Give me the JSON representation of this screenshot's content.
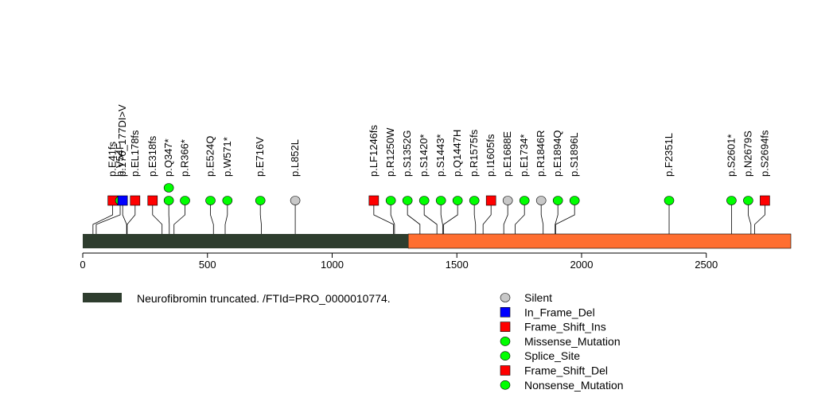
{
  "chart_data": {
    "type": "lollipop",
    "xlim": [
      0,
      2839
    ],
    "axis_ticks": [
      0,
      500,
      1000,
      1500,
      2000,
      2500
    ],
    "domain": {
      "label": "Neurofibromin truncated. /FTId=PRO_0000010774.",
      "start": 0,
      "end": 1305,
      "color": "#2e3d2e"
    },
    "backbone": {
      "start": 1305,
      "end": 2839,
      "color": "#ff6e30"
    },
    "mutations": [
      {
        "label": "p.E41fs",
        "pos": 41,
        "ypos": 120,
        "type": "Frame_Shift_Ins"
      },
      {
        "label": "p.V54F",
        "pos": 54,
        "ypos": 150,
        "type": "Missense_Mutation"
      },
      {
        "label": "p.176_177DI>V",
        "pos": 176,
        "ypos": 160,
        "type": "In_Frame_Del"
      },
      {
        "label": "p.EL178fs",
        "pos": 178,
        "ypos": 210,
        "type": "Frame_Shift_Del"
      },
      {
        "label": "p.E318fs",
        "pos": 318,
        "ypos": 280,
        "type": "Frame_Shift_Del"
      },
      {
        "label": "p.Q347*",
        "pos": 347,
        "ypos": 345,
        "type": "Nonsense_Mutation",
        "count": 2
      },
      {
        "label": "p.R366*",
        "pos": 366,
        "ypos": 410,
        "type": "Nonsense_Mutation"
      },
      {
        "label": "p.E524Q",
        "pos": 524,
        "ypos": 512,
        "type": "Missense_Mutation"
      },
      {
        "label": "p.W571*",
        "pos": 571,
        "ypos": 580,
        "type": "Nonsense_Mutation"
      },
      {
        "label": "p.E716V",
        "pos": 716,
        "ypos": 712,
        "type": "Missense_Mutation"
      },
      {
        "label": "p.L852L",
        "pos": 852,
        "ypos": 852,
        "type": "Silent"
      },
      {
        "label": "p.LF1246fs",
        "pos": 1246,
        "ypos": 1167,
        "type": "Frame_Shift_Del"
      },
      {
        "label": "p.R1250W",
        "pos": 1250,
        "ypos": 1235,
        "type": "Missense_Mutation"
      },
      {
        "label": "p.S1352G",
        "pos": 1352,
        "ypos": 1302,
        "type": "Splice_Site"
      },
      {
        "label": "p.S1420*",
        "pos": 1420,
        "ypos": 1369,
        "type": "Nonsense_Mutation"
      },
      {
        "label": "p.S1443*",
        "pos": 1443,
        "ypos": 1436,
        "type": "Nonsense_Mutation"
      },
      {
        "label": "p.Q1447H",
        "pos": 1447,
        "ypos": 1503,
        "type": "Missense_Mutation"
      },
      {
        "label": "p.R1575fs",
        "pos": 1575,
        "ypos": 1570,
        "type": "Missense_Mutation"
      },
      {
        "label": "p.I1605fs",
        "pos": 1605,
        "ypos": 1637,
        "type": "Frame_Shift_Del"
      },
      {
        "label": "p.E1688E",
        "pos": 1688,
        "ypos": 1704,
        "type": "Silent"
      },
      {
        "label": "p.E1734*",
        "pos": 1734,
        "ypos": 1771,
        "type": "Nonsense_Mutation"
      },
      {
        "label": "p.R1846R",
        "pos": 1846,
        "ypos": 1838,
        "type": "Silent"
      },
      {
        "label": "p.E1894Q",
        "pos": 1894,
        "ypos": 1905,
        "type": "Missense_Mutation"
      },
      {
        "label": "p.S1896L",
        "pos": 1896,
        "ypos": 1972,
        "type": "Missense_Mutation"
      },
      {
        "label": "p.F2351L",
        "pos": 2351,
        "ypos": 2351,
        "type": "Missense_Mutation"
      },
      {
        "label": "p.S2601*",
        "pos": 2601,
        "ypos": 2601,
        "type": "Nonsense_Mutation"
      },
      {
        "label": "p.N2679S",
        "pos": 2679,
        "ypos": 2668,
        "type": "Missense_Mutation"
      },
      {
        "label": "p.S2694fs",
        "pos": 2694,
        "ypos": 2735,
        "type": "Frame_Shift_Del"
      }
    ],
    "legend": [
      {
        "label": "Silent",
        "shape": "circle",
        "color": "#c8c8c8"
      },
      {
        "label": "In_Frame_Del",
        "shape": "square",
        "color": "#0000ff"
      },
      {
        "label": "Frame_Shift_Ins",
        "shape": "square",
        "color": "#ff0000"
      },
      {
        "label": "Missense_Mutation",
        "shape": "circle",
        "color": "#00ff00"
      },
      {
        "label": "Splice_Site",
        "shape": "circle",
        "color": "#00ff00"
      },
      {
        "label": "Frame_Shift_Del",
        "shape": "square",
        "color": "#ff0000"
      },
      {
        "label": "Nonsense_Mutation",
        "shape": "circle",
        "color": "#00ff00"
      }
    ]
  }
}
